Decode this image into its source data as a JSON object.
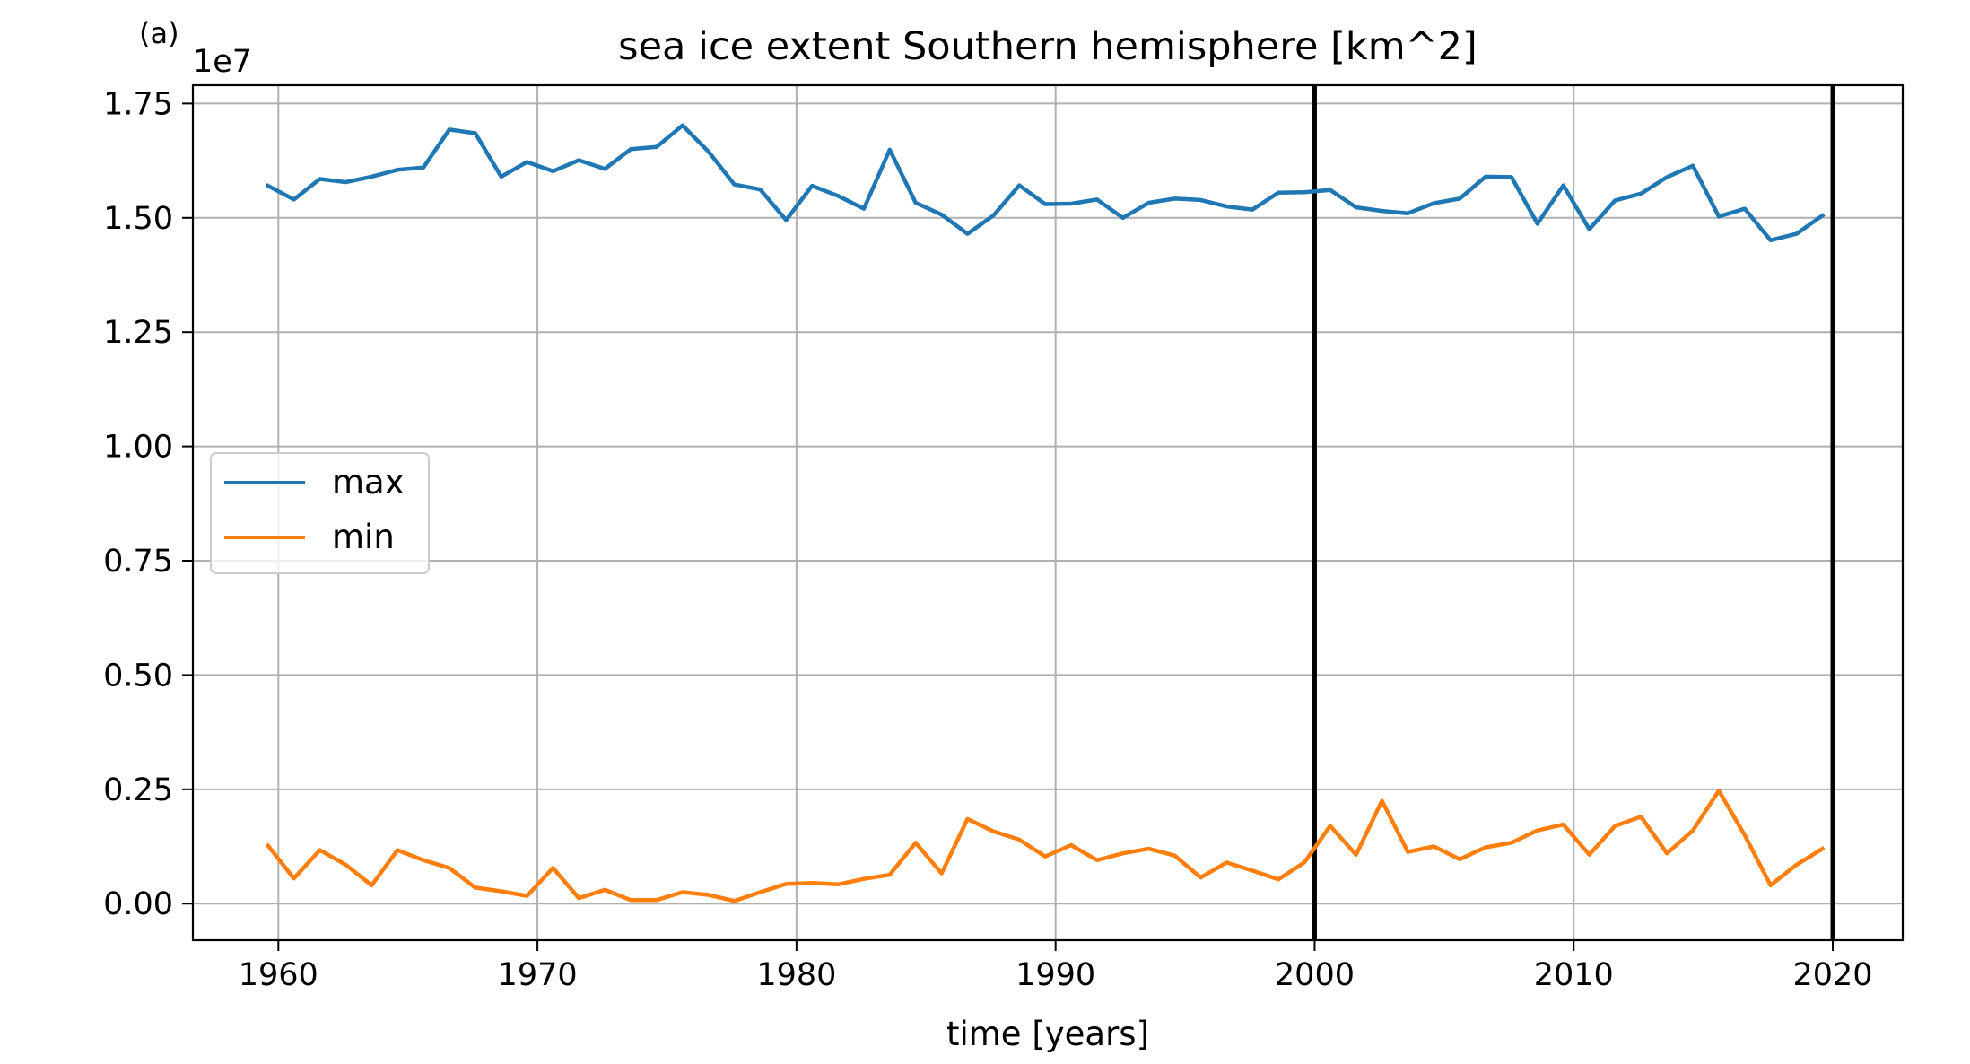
{
  "panel_label": "(a)",
  "chart_data": {
    "type": "line",
    "title": "sea ice extent Southern hemisphere [km^2]",
    "xlabel": "time [years]",
    "ylabel": "",
    "y_offset_label": "1e7",
    "y_scale": 10000000,
    "xlim": [
      1956.7,
      2022.7
    ],
    "ylim": [
      -0.08,
      1.79
    ],
    "x_ticks": [
      1960,
      1970,
      1980,
      1990,
      2000,
      2010,
      2020
    ],
    "x_tick_labels": [
      "1960",
      "1970",
      "1980",
      "1990",
      "2000",
      "2010",
      "2020"
    ],
    "y_ticks": [
      0.0,
      0.25,
      0.5,
      0.75,
      1.0,
      1.25,
      1.5,
      1.75
    ],
    "y_tick_labels": [
      "0.00",
      "0.25",
      "0.50",
      "0.75",
      "1.00",
      "1.25",
      "1.50",
      "1.75"
    ],
    "grid": true,
    "legend_position": "center-left",
    "vertical_lines": [
      2000,
      2020
    ],
    "vertical_line_color": "#000000",
    "x": [
      1959.6,
      1960.6,
      1961.6,
      1962.6,
      1963.6,
      1964.6,
      1965.6,
      1966.6,
      1967.6,
      1968.6,
      1969.6,
      1970.6,
      1971.6,
      1972.6,
      1973.6,
      1974.6,
      1975.6,
      1976.6,
      1977.6,
      1978.6,
      1979.6,
      1980.6,
      1981.6,
      1982.6,
      1983.6,
      1984.6,
      1985.6,
      1986.6,
      1987.6,
      1988.6,
      1989.6,
      1990.6,
      1991.6,
      1992.6,
      1993.6,
      1994.6,
      1995.6,
      1996.6,
      1997.6,
      1998.6,
      1999.6,
      2000.6,
      2001.6,
      2002.6,
      2003.6,
      2004.6,
      2005.6,
      2006.6,
      2007.6,
      2008.6,
      2009.6,
      2010.6,
      2011.6,
      2012.6,
      2013.6,
      2014.6,
      2015.6,
      2016.6,
      2017.6,
      2018.6,
      2019.6
    ],
    "series": [
      {
        "name": "max",
        "color": "#1f77b4",
        "values": [
          1.57,
          1.54,
          1.585,
          1.578,
          1.59,
          1.605,
          1.61,
          1.693,
          1.685,
          1.59,
          1.622,
          1.602,
          1.626,
          1.607,
          1.65,
          1.655,
          1.702,
          1.645,
          1.573,
          1.562,
          1.495,
          1.57,
          1.548,
          1.52,
          1.649,
          1.533,
          1.507,
          1.465,
          1.505,
          1.571,
          1.53,
          1.531,
          1.54,
          1.5,
          1.533,
          1.542,
          1.539,
          1.525,
          1.518,
          1.555,
          1.556,
          1.561,
          1.523,
          1.515,
          1.51,
          1.532,
          1.542,
          1.59,
          1.589,
          1.487,
          1.571,
          1.475,
          1.538,
          1.553,
          1.589,
          1.614,
          1.503,
          1.52,
          1.451,
          1.465,
          1.505
        ]
      },
      {
        "name": "min",
        "color": "#ff7f0e",
        "values": [
          0.127,
          0.055,
          0.117,
          0.085,
          0.04,
          0.117,
          0.095,
          0.078,
          0.035,
          0.027,
          0.017,
          0.078,
          0.012,
          0.03,
          0.008,
          0.008,
          0.025,
          0.019,
          0.006,
          0.025,
          0.043,
          0.045,
          0.042,
          0.054,
          0.063,
          0.133,
          0.066,
          0.185,
          0.158,
          0.14,
          0.103,
          0.128,
          0.095,
          0.11,
          0.12,
          0.105,
          0.057,
          0.09,
          0.072,
          0.053,
          0.09,
          0.17,
          0.107,
          0.225,
          0.113,
          0.125,
          0.097,
          0.123,
          0.133,
          0.16,
          0.173,
          0.107,
          0.17,
          0.19,
          0.11,
          0.16,
          0.247,
          0.15,
          0.04,
          0.085,
          0.12
        ]
      }
    ]
  }
}
